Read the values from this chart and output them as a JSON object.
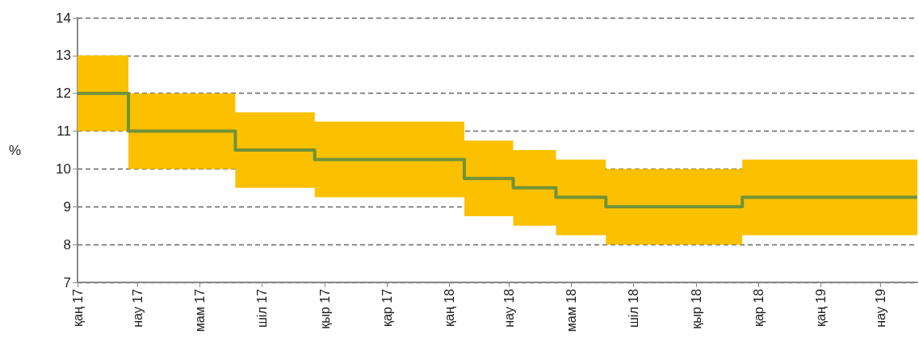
{
  "chart_data": {
    "type": "step",
    "ylabel": "%",
    "xlim": [
      "2017-01-01",
      "2019-04-06"
    ],
    "xticks": [
      {
        "value": "2017-01-01",
        "label": "қаң 17"
      },
      {
        "value": "2017-03-01",
        "label": "нау 17"
      },
      {
        "value": "2017-05-01",
        "label": "мам 17"
      },
      {
        "value": "2017-07-01",
        "label": "шіл 17"
      },
      {
        "value": "2017-09-01",
        "label": "қыр 17"
      },
      {
        "value": "2017-11-01",
        "label": "қар 17"
      },
      {
        "value": "2018-01-01",
        "label": "қаң 18"
      },
      {
        "value": "2018-03-01",
        "label": "нау 18"
      },
      {
        "value": "2018-05-01",
        "label": "мам 18"
      },
      {
        "value": "2018-07-01",
        "label": "шіл 18"
      },
      {
        "value": "2018-09-01",
        "label": "қыр 18"
      },
      {
        "value": "2018-11-01",
        "label": "қар 18"
      },
      {
        "value": "2019-01-01",
        "label": "қаң 19"
      },
      {
        "value": "2019-03-01",
        "label": "нау 19"
      }
    ],
    "ylim": [
      7,
      14
    ],
    "yticks": [
      7,
      8,
      9,
      10,
      11,
      12,
      13,
      14
    ],
    "grid": "y",
    "line_style": "solid",
    "marker": "none",
    "series": [
      {
        "color": "#70923a",
        "x": [
          "2017-01-01",
          "2017-02-20",
          "2017-06-05",
          "2017-08-22",
          "2018-01-16",
          "2018-03-05",
          "2018-04-16",
          "2018-06-04",
          "2018-10-16",
          "2019-04-06"
        ],
        "values": [
          12,
          11,
          10.5,
          10.25,
          9.75,
          9.5,
          9.25,
          9,
          9.25,
          9.25
        ],
        "lower": [
          11,
          10,
          9.5,
          9.25,
          8.75,
          8.5,
          8.25,
          8,
          8.25,
          8.25
        ],
        "upper": [
          13,
          12,
          11.5,
          11.25,
          10.75,
          10.5,
          10.25,
          10,
          10.25,
          10.25
        ]
      }
    ]
  }
}
